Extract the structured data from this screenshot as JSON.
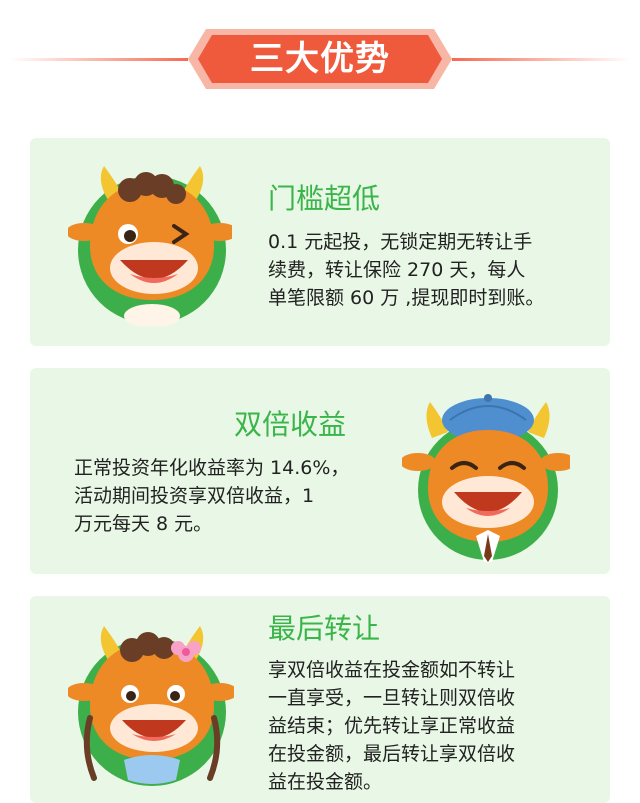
{
  "header": {
    "title": "三大优势"
  },
  "features": [
    {
      "title": "门槛超低",
      "lines": [
        "0.1 元起投，无锁定期无转让手",
        "续费，转让保险 270 天，每人",
        "单笔限额 60 万 ,提现即时到账。"
      ]
    },
    {
      "title": "双倍收益",
      "lines": [
        "正常投资年化收益率为 14.6%，",
        "活动期间投资享双倍收益，1",
        "万元每天 8 元。"
      ]
    },
    {
      "title": "最后转让",
      "lines": [
        "享双倍收益在投金额如不转让",
        "一直享受，一旦转让则双倍收",
        "益结束；优先转让享正常收益",
        "在投金额，最后转让享双倍收",
        "益在投金额。"
      ]
    }
  ],
  "colors": {
    "accent_red": "#f05a3c",
    "title_green": "#3ab54a",
    "card_bg": "#e9f8e6",
    "mascot_orange": "#ee8a26",
    "badge_green": "#3daf4a"
  }
}
